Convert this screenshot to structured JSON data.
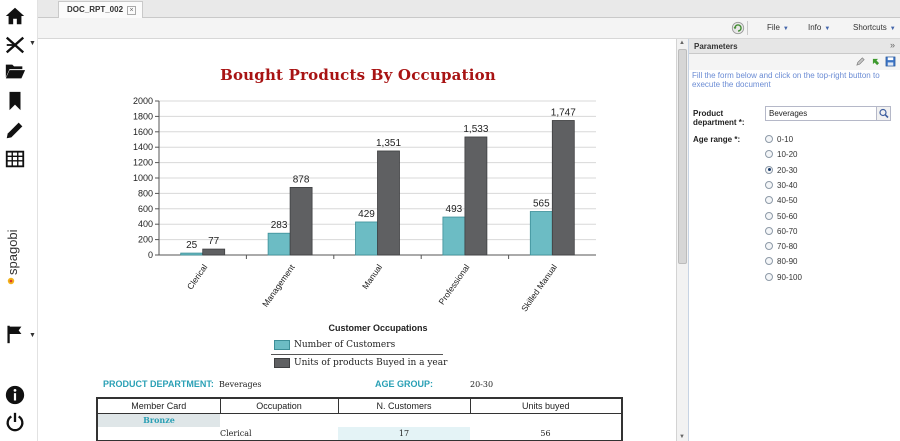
{
  "tab": {
    "title": "DOC_RPT_002",
    "close": "×"
  },
  "toolbar": {
    "file": "File",
    "info": "Info",
    "shortcuts": "Shortcuts"
  },
  "nav": {
    "brand": "spagobi"
  },
  "chart_data": {
    "type": "bar",
    "title": "Bought Products By Occupation",
    "xlabel": "Customer Occupations",
    "ylabel": "",
    "categories": [
      "Clerical",
      "Management",
      "Manual",
      "Professional",
      "Skilled Manual"
    ],
    "series": [
      {
        "name": "Number of Customers",
        "values": [
          25,
          283,
          429,
          493,
          565
        ],
        "labels": [
          "25",
          "283",
          "429",
          "493",
          "565"
        ],
        "color": "#6cbcc4"
      },
      {
        "name": "Units of products Buyed in a year",
        "values": [
          77,
          878,
          1351,
          1533,
          1747
        ],
        "labels": [
          "77",
          "878",
          "1,351",
          "1,533",
          "1,747"
        ],
        "color": "#5f6062"
      }
    ],
    "ylim": [
      0,
      2000
    ],
    "yticks": [
      0,
      200,
      400,
      600,
      800,
      1000,
      1200,
      1400,
      1600,
      1800,
      2000
    ],
    "grid": true,
    "legend": "bottom"
  },
  "filters": {
    "dept_label": "PRODUCT DEPARTMENT:",
    "dept_value": "Beverages",
    "age_label": "AGE GROUP:",
    "age_value": "20-30"
  },
  "table": {
    "headers": [
      "Member Card",
      "Occupation",
      "N. Customers",
      "Units buyed"
    ],
    "group": "Bronze",
    "row": {
      "occupation": "Clerical",
      "customers": "17",
      "units": "56"
    }
  },
  "params": {
    "title": "Parameters",
    "collapse": "»",
    "help": "Fill the form below and click on the top-right button to execute the document",
    "dept_label": "Product department *:",
    "dept_value": "Beverages",
    "age_label": "Age range *:",
    "age_options": [
      "0-10",
      "10-20",
      "20-30",
      "30-40",
      "40-50",
      "50-60",
      "60-70",
      "70-80",
      "80-90",
      "90-100"
    ],
    "age_selected": "20-30"
  },
  "colors": {
    "accent_red": "#a81313",
    "teal": "#2aa0b5"
  }
}
